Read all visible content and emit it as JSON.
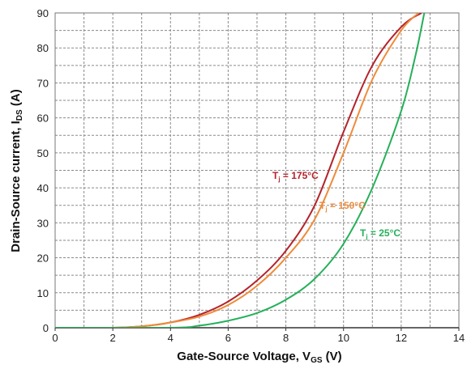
{
  "chart_data": {
    "type": "line",
    "title": "",
    "xlabel": {
      "main": "Gate-Source Voltage, V",
      "sub": "GS",
      "suffix": " (V)"
    },
    "ylabel": {
      "main": "Drain-Source current, I",
      "sub": "DS",
      "suffix": " (A)"
    },
    "xlim": [
      0,
      14
    ],
    "ylim": [
      0,
      90
    ],
    "x_ticks": [
      0,
      2,
      4,
      6,
      8,
      10,
      12,
      14
    ],
    "y_ticks": [
      0,
      10,
      20,
      30,
      40,
      50,
      60,
      70,
      80,
      90
    ],
    "grid": true,
    "grid_style": "dashed",
    "series": [
      {
        "name": "T_j = 175°C",
        "label": {
          "pre": "T",
          "sub": "j",
          "post": " = 175°C"
        },
        "color": "#b5232a",
        "points": [
          [
            0,
            0
          ],
          [
            2,
            0
          ],
          [
            3,
            0.4
          ],
          [
            4,
            1.5
          ],
          [
            5,
            3.7
          ],
          [
            6,
            7.5
          ],
          [
            7,
            13.5
          ],
          [
            8,
            22
          ],
          [
            9,
            35
          ],
          [
            10,
            56
          ],
          [
            11,
            75
          ],
          [
            12,
            86
          ],
          [
            12.7,
            90
          ]
        ]
      },
      {
        "name": "T_j = 150°C",
        "label": {
          "pre": "T",
          "sub": "j",
          "post": " = 150°C"
        },
        "color": "#ef8b3a",
        "points": [
          [
            0,
            0
          ],
          [
            2,
            0
          ],
          [
            3,
            0.4
          ],
          [
            4,
            1.5
          ],
          [
            5,
            3.2
          ],
          [
            6,
            6.5
          ],
          [
            7,
            12
          ],
          [
            8,
            20
          ],
          [
            9,
            31
          ],
          [
            10,
            50
          ],
          [
            11,
            71
          ],
          [
            12,
            85
          ],
          [
            12.6,
            90
          ]
        ]
      },
      {
        "name": "T_j = 25°C",
        "label": {
          "pre": "T",
          "sub": "j",
          "post": " = 25°C"
        },
        "color": "#25b05a",
        "points": [
          [
            0,
            0
          ],
          [
            4,
            0
          ],
          [
            5,
            0.6
          ],
          [
            6,
            2
          ],
          [
            7,
            4.2
          ],
          [
            8,
            8
          ],
          [
            9,
            14
          ],
          [
            10,
            24
          ],
          [
            11,
            40
          ],
          [
            12,
            62
          ],
          [
            12.5,
            78
          ],
          [
            12.8,
            90
          ]
        ]
      }
    ]
  }
}
